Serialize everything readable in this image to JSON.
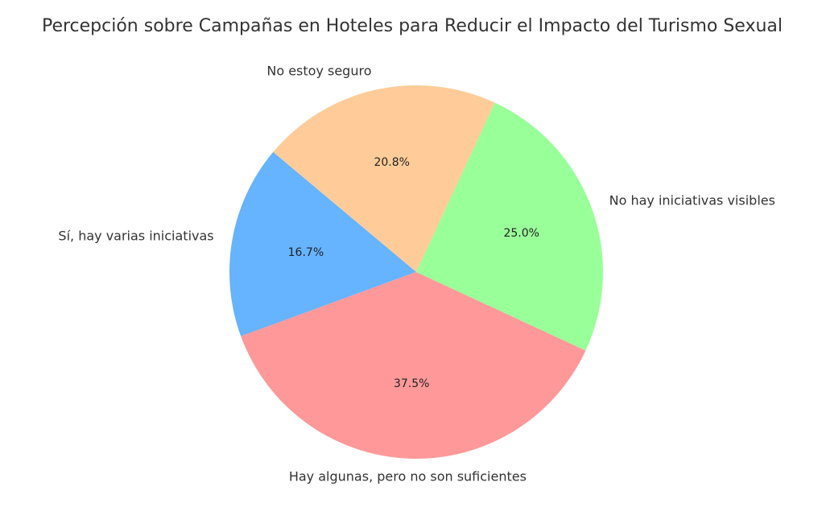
{
  "chart_data": {
    "type": "pie",
    "title": "Percepción sobre Campañas en Hoteles para Reducir el Impacto del Turismo Sexual",
    "categories": [
      "Sí, hay varias iniciativas",
      "Hay algunas, pero no son suficientes",
      "No hay iniciativas visibles",
      "No estoy seguro"
    ],
    "values": [
      16.7,
      37.5,
      25.0,
      20.8
    ],
    "value_labels": [
      "16.7%",
      "37.5%",
      "25.0%",
      "20.8%"
    ],
    "colors": [
      "#66b3ff",
      "#ff9999",
      "#99ff99",
      "#ffcc99"
    ]
  }
}
